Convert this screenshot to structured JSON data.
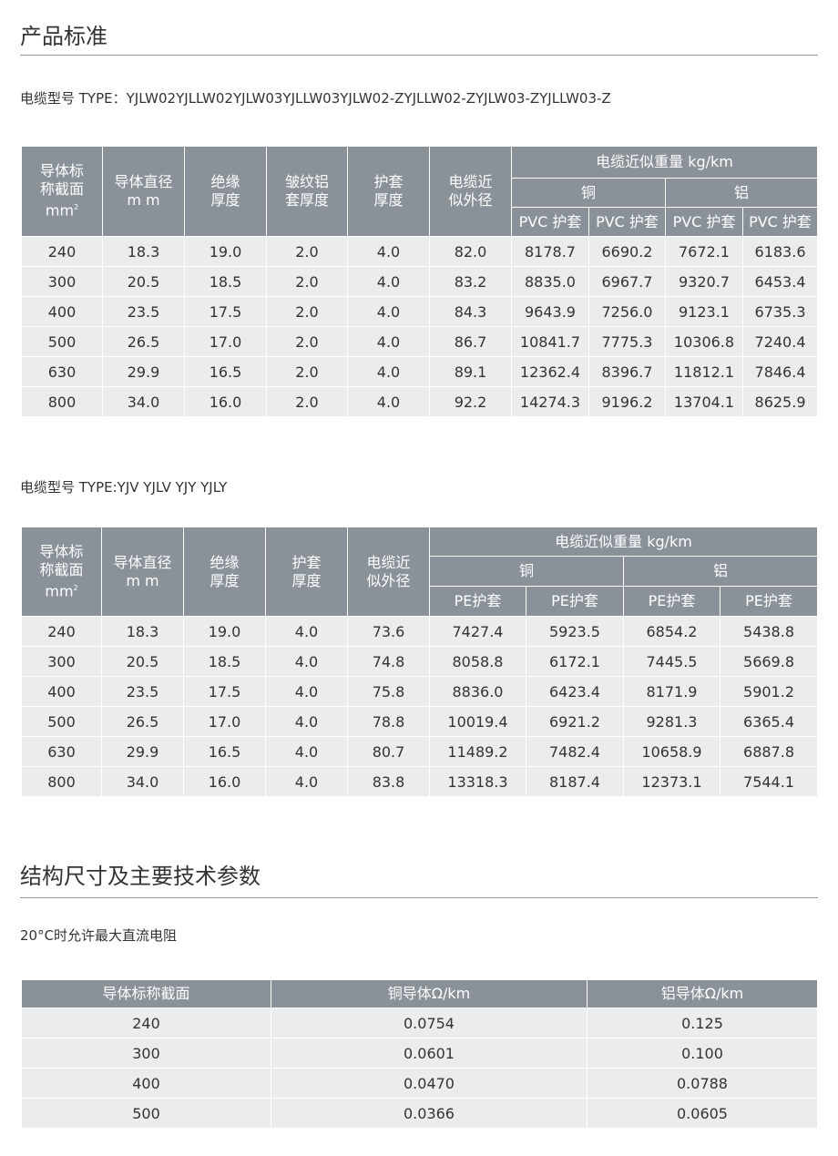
{
  "section1": {
    "title": "产品标准",
    "type_line": "电缆型号 TYPE：YJLW02YJLLW02YJLW03YJLLW03YJLW02-ZYJLLW02-ZYJLW03-ZYJLLW03-Z"
  },
  "table1": {
    "headers": [
      "导体标称截面",
      "导体直径",
      "绝缘厚度",
      "皱纹铝套厚度",
      "护套厚度",
      "电缆近似外径"
    ],
    "headers_display": [
      [
        "导体标",
        "称截面",
        "mm"
      ],
      [
        "导体直径",
        "m m"
      ],
      [
        "绝缘",
        "厚度"
      ],
      [
        "皱纹铝",
        "套厚度"
      ],
      [
        "护套",
        "厚度"
      ],
      [
        "电缆近",
        "似外径"
      ]
    ],
    "weight_header": "电缆近似重量 kg/km",
    "copper": "铜",
    "aluminum": "铝",
    "sub": [
      "PVC 护套",
      "PVC 护套",
      "PVC 护套",
      "PVC 护套"
    ],
    "rows": [
      [
        "240",
        "18.3",
        "19.0",
        "2.0",
        "4.0",
        "82.0",
        "8178.7",
        "6690.2",
        "7672.1",
        "6183.6"
      ],
      [
        "300",
        "20.5",
        "18.5",
        "2.0",
        "4.0",
        "83.2",
        "8835.0",
        "6967.7",
        "9320.7",
        "6453.4"
      ],
      [
        "400",
        "23.5",
        "17.5",
        "2.0",
        "4.0",
        "84.3",
        "9643.9",
        "7256.0",
        "9123.1",
        "6735.3"
      ],
      [
        "500",
        "26.5",
        "17.0",
        "2.0",
        "4.0",
        "86.7",
        "10841.7",
        "7775.3",
        "10306.8",
        "7240.4"
      ],
      [
        "630",
        "29.9",
        "16.5",
        "2.0",
        "4.0",
        "89.1",
        "12362.4",
        "8396.7",
        "11812.1",
        "7846.4"
      ],
      [
        "800",
        "34.0",
        "16.0",
        "2.0",
        "4.0",
        "92.2",
        "14274.3",
        "9196.2",
        "13704.1",
        "8625.9"
      ]
    ]
  },
  "section2": {
    "type_line": "电缆型号 TYPE:YJV YJLV YJY YJLY"
  },
  "table2": {
    "headers_display": [
      [
        "导体标",
        "称截面",
        "mm"
      ],
      [
        "导体直径",
        "m m"
      ],
      [
        "绝缘",
        "厚度"
      ],
      [
        "护套",
        "厚度"
      ],
      [
        "电缆近",
        "似外径"
      ]
    ],
    "weight_header": "电缆近似重量 kg/km",
    "copper": "铜",
    "aluminum": "铝",
    "sub": [
      "PE护套",
      "PE护套",
      "PE护套",
      "PE护套"
    ],
    "rows": [
      [
        "240",
        "18.3",
        "19.0",
        "4.0",
        "73.6",
        "7427.4",
        "5923.5",
        "6854.2",
        "5438.8"
      ],
      [
        "300",
        "20.5",
        "18.5",
        "4.0",
        "74.8",
        "8058.8",
        "6172.1",
        "7445.5",
        "5669.8"
      ],
      [
        "400",
        "23.5",
        "17.5",
        "4.0",
        "75.8",
        "8836.0",
        "6423.4",
        "8171.9",
        "5901.2"
      ],
      [
        "500",
        "26.5",
        "17.0",
        "4.0",
        "78.8",
        "10019.4",
        "6921.2",
        "9281.3",
        "6365.4"
      ],
      [
        "630",
        "29.9",
        "16.5",
        "4.0",
        "80.7",
        "11489.2",
        "7482.4",
        "10658.9",
        "6887.8"
      ],
      [
        "800",
        "34.0",
        "16.0",
        "4.0",
        "83.8",
        "13318.3",
        "8187.4",
        "12373.1",
        "7544.1"
      ]
    ]
  },
  "section3": {
    "title": "结构尺寸及主要技术参数",
    "subtitle": "20°C时允许最大直流电阻"
  },
  "table3": {
    "headers": [
      "导体标称截面",
      "铜导体Ω/km",
      "铝导体Ω/km"
    ],
    "rows": [
      [
        "240",
        "0.0754",
        "0.125"
      ],
      [
        "300",
        "0.0601",
        "0.100"
      ],
      [
        "400",
        "0.0470",
        "0.0788"
      ],
      [
        "500",
        "0.0366",
        "0.0605"
      ]
    ]
  }
}
